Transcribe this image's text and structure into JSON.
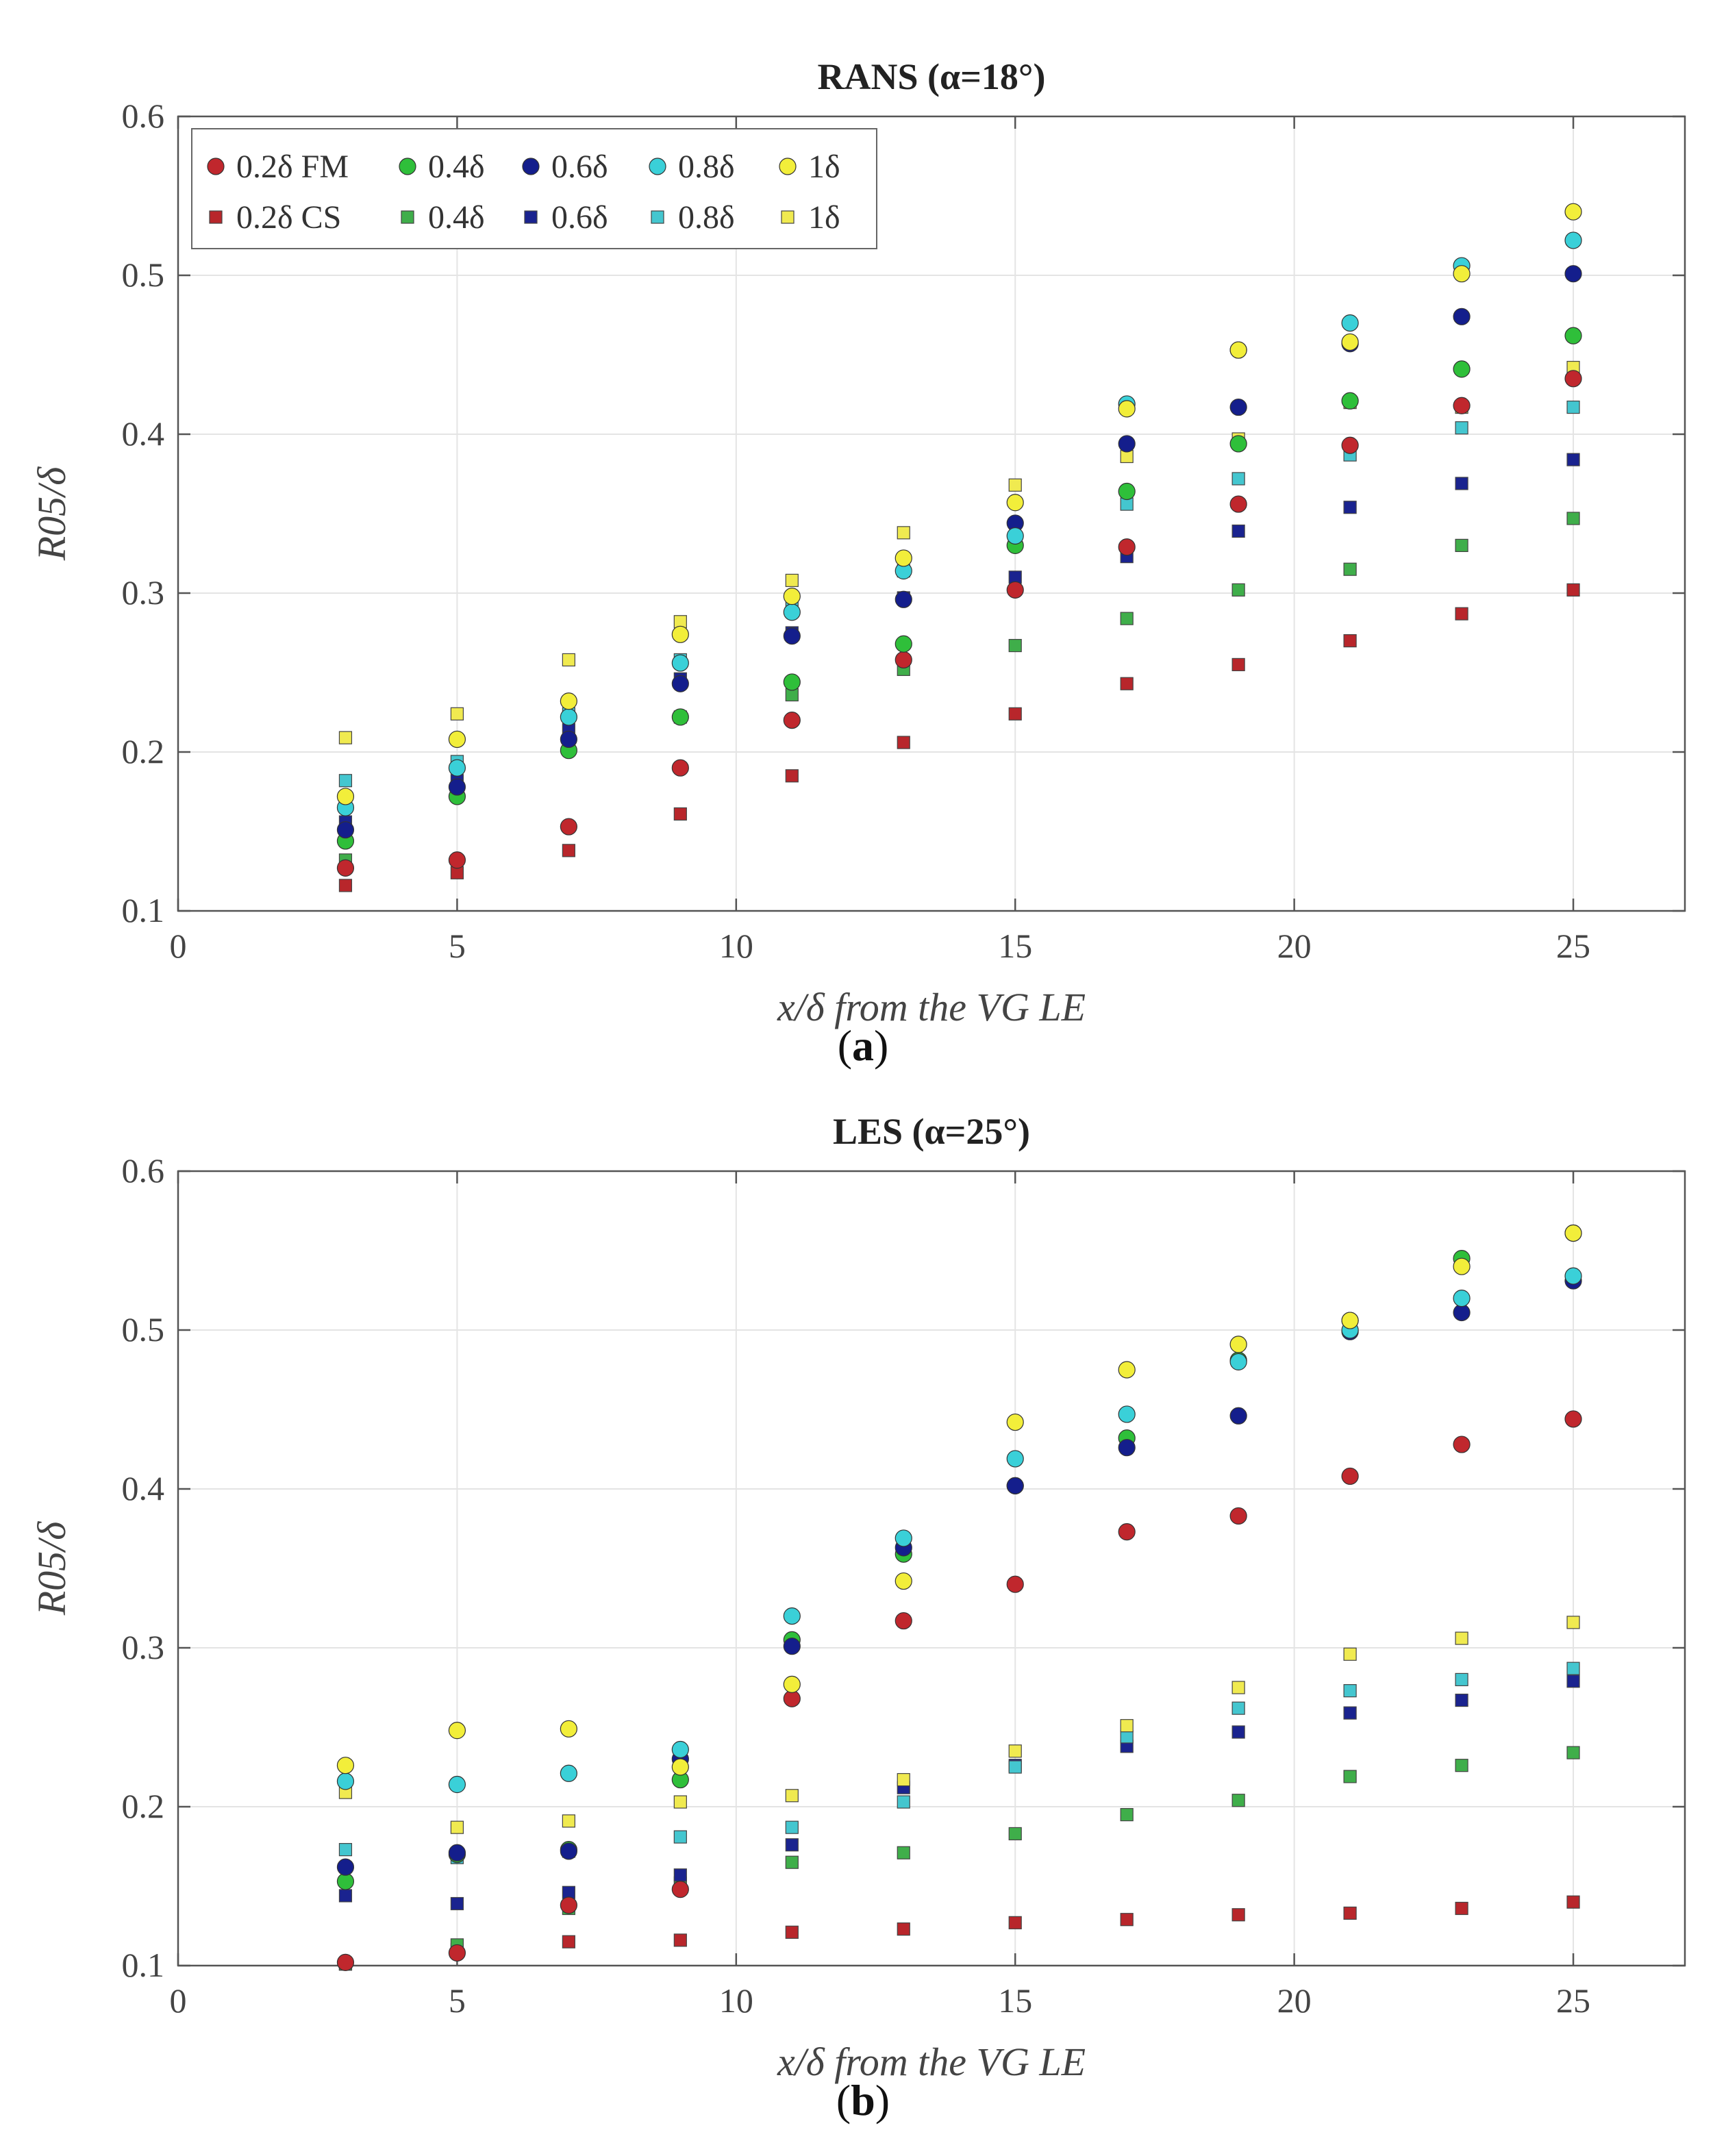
{
  "chart_data": [
    {
      "type": "scatter",
      "title": "RANS (α=18°)",
      "xlabel": "x/δ from the VG LE",
      "ylabel": "R05/δ",
      "xlim": [
        0,
        27
      ],
      "ylim": [
        0.1,
        0.6
      ],
      "xticks": [
        0,
        5,
        10,
        15,
        20,
        25
      ],
      "yticks": [
        0.1,
        0.2,
        0.3,
        0.4,
        0.5,
        0.6
      ],
      "grid": true,
      "legend_position": "top-left",
      "x": [
        3,
        5,
        7,
        9,
        11,
        13,
        15,
        17,
        19,
        21,
        23,
        25
      ],
      "series": [
        {
          "name": "0.2δ FM",
          "marker": "circle",
          "color": "#c0272d",
          "values": [
            0.127,
            0.132,
            0.153,
            0.19,
            0.22,
            0.258,
            0.302,
            0.329,
            0.356,
            0.393,
            0.418,
            0.435
          ]
        },
        {
          "name": "0.4δ",
          "group": "FM",
          "marker": "circle",
          "color": "#2fbf3a",
          "values": [
            0.144,
            0.172,
            0.201,
            0.222,
            0.244,
            0.268,
            0.33,
            0.364,
            0.394,
            0.421,
            0.441,
            0.462
          ]
        },
        {
          "name": "0.6δ",
          "group": "FM",
          "marker": "circle",
          "color": "#141e8c",
          "values": [
            0.151,
            0.178,
            0.208,
            0.243,
            0.273,
            0.296,
            0.344,
            0.394,
            0.417,
            0.457,
            0.474,
            0.501
          ]
        },
        {
          "name": "0.8δ",
          "group": "FM",
          "marker": "circle",
          "color": "#3ad0d8",
          "values": [
            0.165,
            0.19,
            0.222,
            0.256,
            0.288,
            0.314,
            0.336,
            0.419,
            0.453,
            0.47,
            0.506,
            0.522
          ]
        },
        {
          "name": "1δ",
          "group": "FM",
          "marker": "circle",
          "color": "#f2ee3a",
          "values": [
            0.172,
            0.208,
            0.232,
            0.274,
            0.298,
            0.322,
            0.357,
            0.416,
            0.453,
            0.458,
            0.501,
            0.54
          ]
        },
        {
          "name": "0.2δ CS",
          "marker": "square",
          "color": "#b8262b",
          "values": [
            0.116,
            0.124,
            0.138,
            0.161,
            0.185,
            0.206,
            0.224,
            0.243,
            0.255,
            0.27,
            0.287,
            0.302
          ]
        },
        {
          "name": "0.4δ",
          "group": "CS",
          "marker": "square",
          "color": "#3fae4a",
          "values": [
            0.132,
            0.175,
            0.205,
            0.222,
            0.236,
            0.252,
            0.267,
            0.284,
            0.302,
            0.315,
            0.33,
            0.347
          ]
        },
        {
          "name": "0.6δ",
          "group": "CS",
          "marker": "square",
          "color": "#1a238f",
          "values": [
            0.156,
            0.182,
            0.214,
            0.246,
            0.275,
            0.297,
            0.31,
            0.323,
            0.339,
            0.354,
            0.369,
            0.384
          ]
        },
        {
          "name": "0.8δ",
          "group": "CS",
          "marker": "square",
          "color": "#44c6cf",
          "values": [
            0.182,
            0.194,
            0.224,
            0.258,
            0.291,
            0.314,
            0.334,
            0.356,
            0.372,
            0.387,
            0.404,
            0.417
          ]
        },
        {
          "name": "1δ",
          "group": "CS",
          "marker": "square",
          "color": "#f0ea50",
          "values": [
            0.209,
            0.224,
            0.258,
            0.282,
            0.308,
            0.338,
            0.368,
            0.386,
            0.397,
            0.42,
            0.417,
            0.442
          ]
        }
      ]
    },
    {
      "type": "scatter",
      "title": "LES (α=25°)",
      "xlabel": "x/δ from the VG LE",
      "ylabel": "R05/δ",
      "xlim": [
        0,
        27
      ],
      "ylim": [
        0.1,
        0.6
      ],
      "xticks": [
        0,
        5,
        10,
        15,
        20,
        25
      ],
      "yticks": [
        0.1,
        0.2,
        0.3,
        0.4,
        0.5,
        0.6
      ],
      "grid": true,
      "x": [
        3,
        5,
        7,
        9,
        11,
        13,
        15,
        17,
        19,
        21,
        23,
        25
      ],
      "series": [
        {
          "name": "0.2δ FM",
          "marker": "circle",
          "color": "#c0272d",
          "values": [
            0.102,
            0.108,
            0.138,
            0.148,
            0.268,
            0.317,
            0.34,
            0.373,
            0.383,
            0.408,
            0.428,
            0.444
          ]
        },
        {
          "name": "0.4δ",
          "group": "FM",
          "marker": "circle",
          "color": "#2fbf3a",
          "values": [
            0.153,
            0.17,
            0.173,
            0.217,
            0.305,
            0.359,
            0.402,
            0.432,
            0.481,
            0.506,
            0.545,
            0.561
          ]
        },
        {
          "name": "0.6δ",
          "group": "FM",
          "marker": "circle",
          "color": "#141e8c",
          "values": [
            0.162,
            0.171,
            0.172,
            0.23,
            0.301,
            0.363,
            0.402,
            0.426,
            0.446,
            0.499,
            0.511,
            0.531
          ]
        },
        {
          "name": "0.8δ",
          "group": "FM",
          "marker": "circle",
          "color": "#3ad0d8",
          "values": [
            0.216,
            0.214,
            0.221,
            0.236,
            0.32,
            0.369,
            0.419,
            0.447,
            0.48,
            0.5,
            0.52,
            0.534
          ]
        },
        {
          "name": "1δ",
          "group": "FM",
          "marker": "circle",
          "color": "#f2ee3a",
          "values": [
            0.226,
            0.248,
            0.249,
            0.225,
            0.277,
            0.342,
            0.442,
            0.475,
            0.491,
            0.506,
            0.54,
            0.561
          ]
        },
        {
          "name": "0.2δ CS",
          "marker": "square",
          "color": "#b8262b",
          "values": [
            0.101,
            0.11,
            0.115,
            0.116,
            0.121,
            0.123,
            0.127,
            0.129,
            0.132,
            0.133,
            0.136,
            0.14
          ]
        },
        {
          "name": "0.4δ",
          "group": "CS",
          "marker": "square",
          "color": "#3fae4a",
          "values": [
            0.101,
            0.113,
            0.136,
            0.152,
            0.165,
            0.171,
            0.183,
            0.195,
            0.204,
            0.219,
            0.226,
            0.234
          ]
        },
        {
          "name": "0.6δ",
          "group": "CS",
          "marker": "square",
          "color": "#1a238f",
          "values": [
            0.144,
            0.139,
            0.146,
            0.157,
            0.176,
            0.212,
            0.226,
            0.238,
            0.247,
            0.259,
            0.267,
            0.279
          ]
        },
        {
          "name": "0.8δ",
          "group": "CS",
          "marker": "square",
          "color": "#44c6cf",
          "values": [
            0.173,
            0.168,
            0.172,
            0.181,
            0.187,
            0.203,
            0.225,
            0.244,
            0.262,
            0.273,
            0.28,
            0.287
          ]
        },
        {
          "name": "1δ",
          "group": "CS",
          "marker": "square",
          "color": "#f0ea50",
          "values": [
            0.209,
            0.187,
            0.191,
            0.203,
            0.207,
            0.217,
            0.235,
            0.251,
            0.275,
            0.296,
            0.306,
            0.316
          ]
        }
      ]
    }
  ],
  "captions": {
    "a": "a",
    "b": "b"
  }
}
